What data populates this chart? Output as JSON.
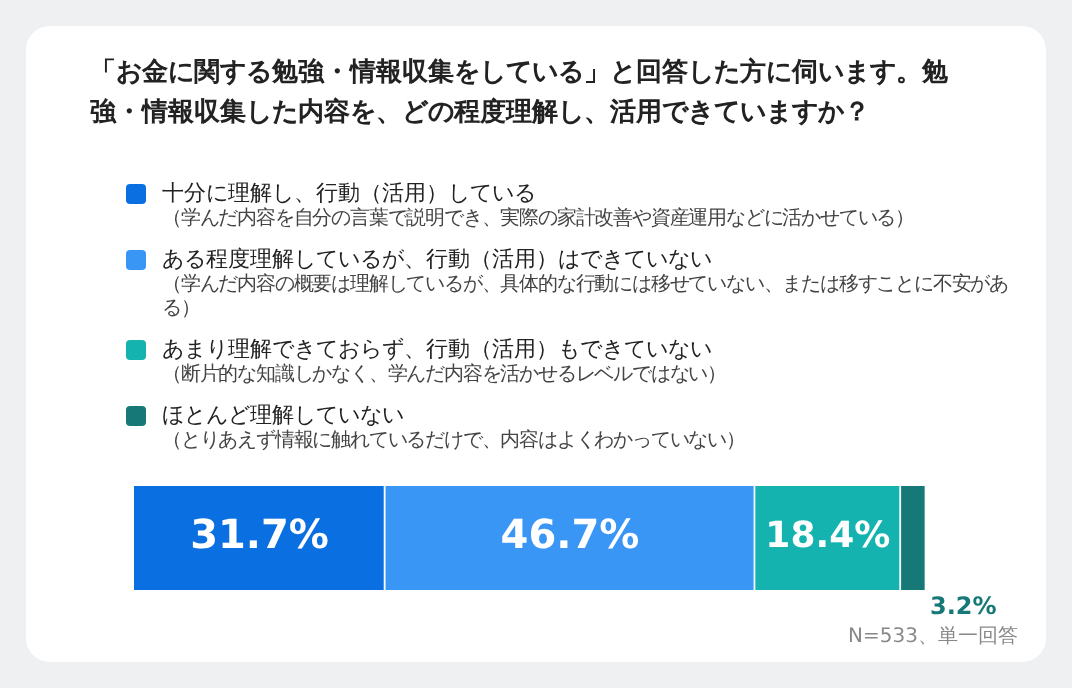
{
  "chart_data": {
    "type": "bar",
    "orientation": "horizontal",
    "stacked": true,
    "title": "「お金に関する勉強・情報収集をしている」と回答した方に伺います。勉強・情報収集した内容を、どの程度理解し、活用できていますか？",
    "categories": [
      null
    ],
    "tick_labels": false,
    "legend": "top left",
    "annotations": [
      "（学んだ内容を自分の言葉で説明でき、実際の家計改善や資産運用などに活かせている）",
      "（学んだ内容の概要は理解しているが、具体的な行動には移せていない、または移すことに不安がある）",
      "（断片的な知識しかなく、学んだ内容を活かせるレベルではない）",
      "（とりあえず情報に触れているだけで、内容はよくわかっていない）",
      "N=533、単一回答"
    ],
    "series": [
      {
        "name": "十分に理解し、行動（活用）している",
        "color": "#0a6fe0",
        "values": [
          31.7
        ],
        "value_labels": [
          "31.7%"
        ]
      },
      {
        "name": "ある程度理解しているが、行動（活用）はできていない",
        "color": "#3a96f5",
        "values": [
          46.7
        ],
        "value_labels": [
          "46.7%"
        ]
      },
      {
        "name": "あまり理解できておらず、行動（活用）もできていない",
        "color": "#14b3b0",
        "values": [
          18.4
        ],
        "value_labels": [
          "18.4%"
        ]
      },
      {
        "name": "ほとんど理解していない",
        "color": "#177878",
        "values": [
          3.2
        ],
        "value_labels": [
          "3.2%"
        ]
      }
    ]
  }
}
